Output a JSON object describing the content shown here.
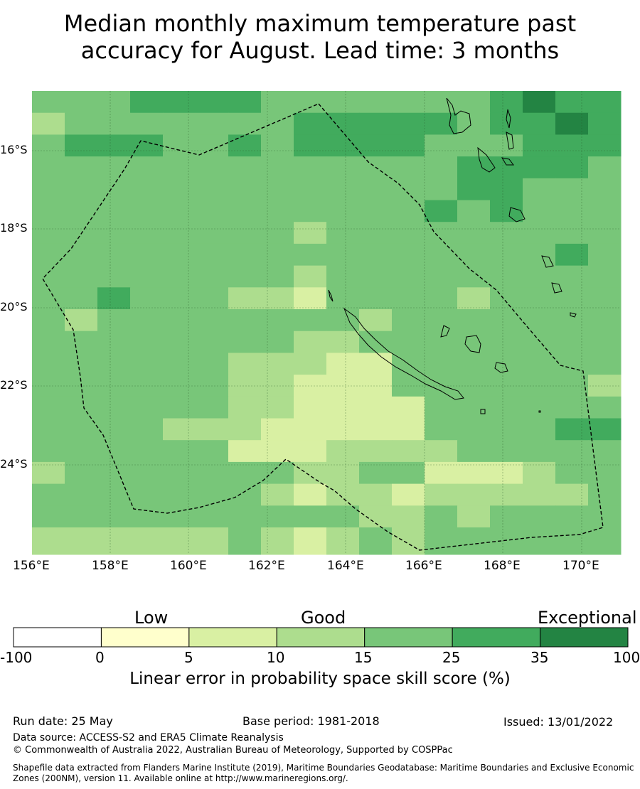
{
  "title_line1": "Median monthly maximum temperature past",
  "title_line2": "accuracy for August. Lead time: 3 months",
  "map": {
    "lon_labels": [
      "156°E",
      "158°E",
      "160°E",
      "162°E",
      "164°E",
      "166°E",
      "168°E",
      "170°E"
    ],
    "lat_labels": [
      "16°S",
      "18°S",
      "20°S",
      "22°S",
      "24°S"
    ],
    "lon_range": [
      156,
      171
    ],
    "lat_range": [
      -26.3,
      -14.5
    ],
    "gridlines": true
  },
  "colorbar": {
    "categories": [
      "Low",
      "Good",
      "Exceptional"
    ],
    "ticks": [
      "-100",
      "0",
      "5",
      "10",
      "15",
      "25",
      "35",
      "100"
    ],
    "colors": [
      "#ffffff",
      "#ffffcc",
      "#d9f0a3",
      "#addd8e",
      "#78c679",
      "#41ab5d",
      "#238443"
    ],
    "title": "Linear error in probability space skill score (%)"
  },
  "footer": {
    "run_date": "Run date: 25 May",
    "base_period": "Base period: 1981-2018",
    "issued": "Issued: 13/01/2022",
    "data_source": "Data source: ACCESS-S2 and ERA5 Climate Reanalysis",
    "copyright": "© Commonwealth of Australia 2022, Australian Bureau of Meteorology, Supported by COSPPac",
    "shapefile_note": "Shapefile data extracted from Flanders Marine Institute (2019), Maritime Boundaries Geodatabase: Maritime Boundaries and Exclusive Economic Zones (200NM), version 11. Available online at http://www.marineregions.org/."
  }
}
